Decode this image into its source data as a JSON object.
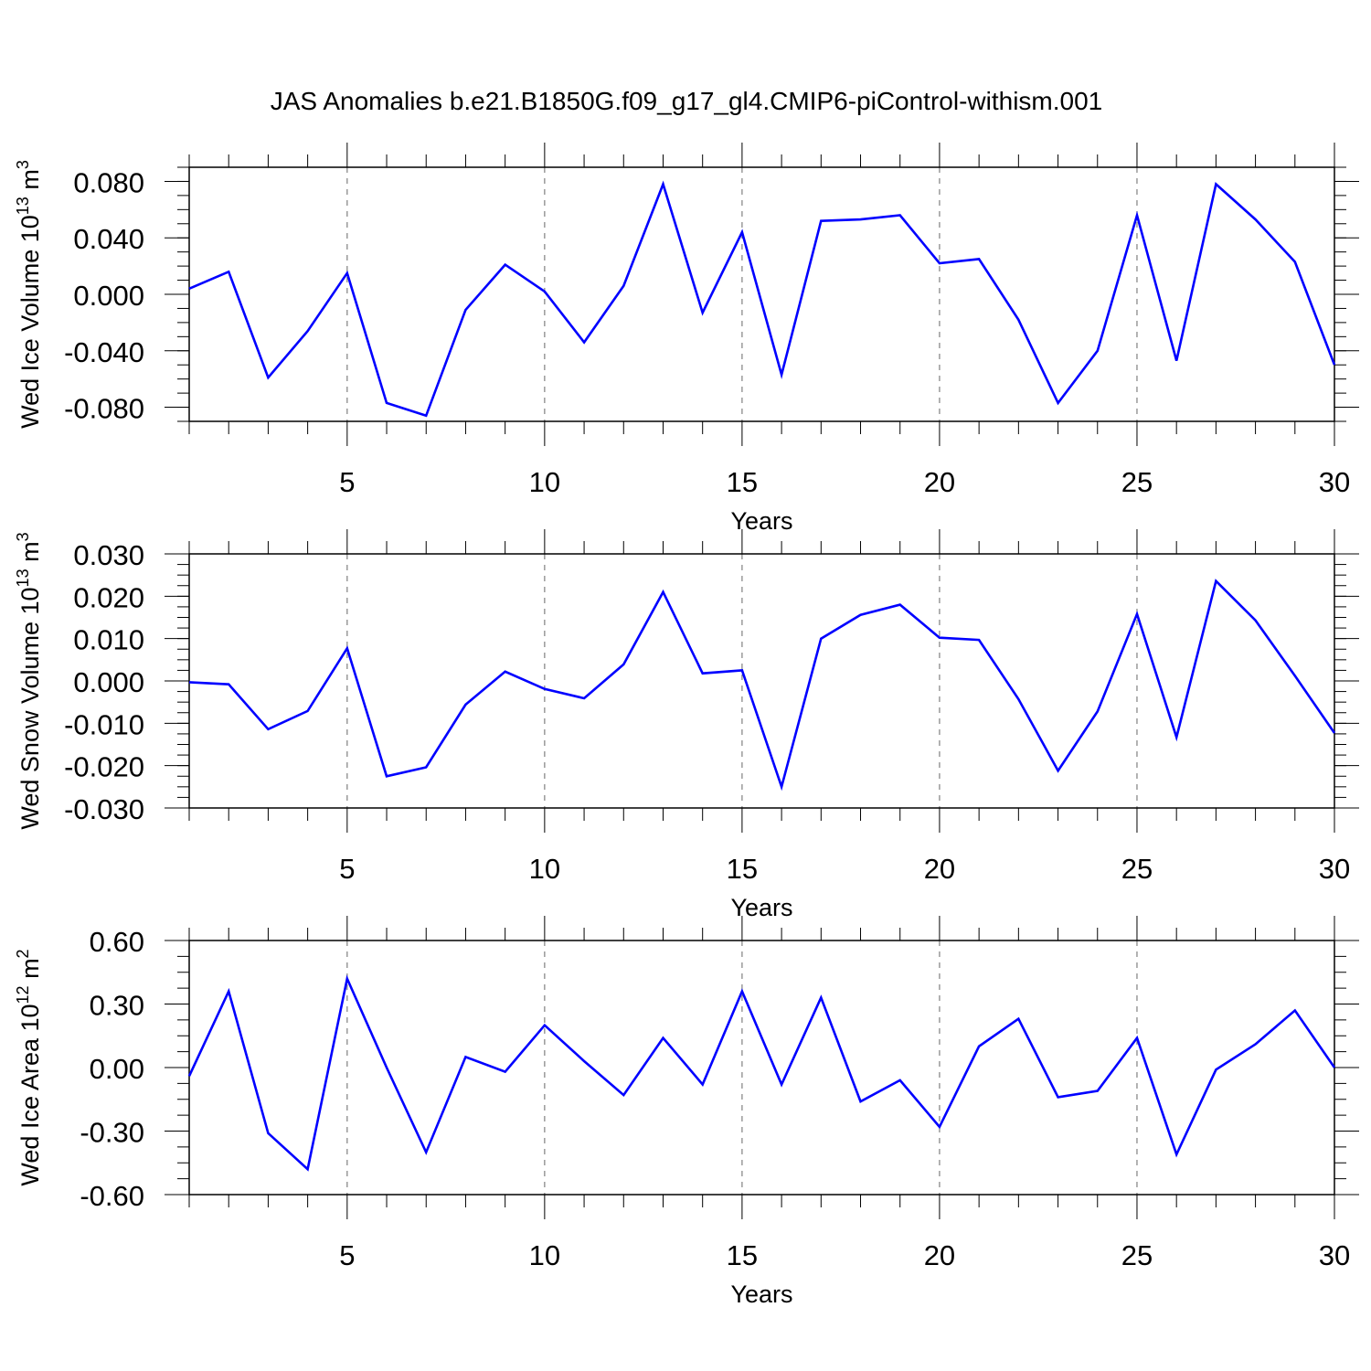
{
  "title": "JAS Anomalies b.e21.B1850G.f09_g17_gl4.CMIP6-piControl-withism.001",
  "colors": {
    "line": "#0000ff",
    "axis": "#000000",
    "grid": "#808080"
  },
  "chart_data": [
    {
      "type": "line",
      "ylabel": {
        "text": "Wed Ice Volume 10",
        "exp": "13",
        "unit": " m",
        "unit_exp": "3"
      },
      "xlabel": "Years",
      "xlim": [
        1,
        30
      ],
      "ylim": [
        -0.09,
        0.09
      ],
      "xticks": [
        5,
        10,
        15,
        20,
        25,
        30
      ],
      "yticks": [
        -0.08,
        -0.04,
        0.0,
        0.04,
        0.08
      ],
      "ytick_labels": [
        "-0.080",
        "-0.040",
        "0.000",
        "0.040",
        "0.080"
      ],
      "grid_x": [
        5,
        10,
        15,
        20,
        25
      ],
      "series": [
        {
          "name": "Wed Ice Volume",
          "x": [
            1,
            2,
            3,
            4,
            5,
            6,
            7,
            8,
            9,
            10,
            11,
            12,
            13,
            14,
            15,
            16,
            17,
            18,
            19,
            20,
            21,
            22,
            23,
            24,
            25,
            26,
            27,
            28,
            29,
            30
          ],
          "values": [
            0.004,
            0.016,
            -0.059,
            -0.026,
            0.015,
            -0.077,
            -0.086,
            -0.011,
            0.021,
            0.002,
            -0.034,
            0.006,
            0.078,
            -0.013,
            0.044,
            -0.057,
            0.052,
            0.053,
            0.056,
            0.022,
            0.025,
            -0.018,
            -0.077,
            -0.04,
            0.056,
            -0.047,
            0.078,
            0.053,
            0.023,
            -0.05
          ]
        }
      ]
    },
    {
      "type": "line",
      "ylabel": {
        "text": "Wed Snow Volume 10",
        "exp": "13",
        "unit": " m",
        "unit_exp": "3"
      },
      "xlabel": "Years",
      "xlim": [
        1,
        30
      ],
      "ylim": [
        -0.03,
        0.03
      ],
      "xticks": [
        5,
        10,
        15,
        20,
        25,
        30
      ],
      "yticks": [
        -0.03,
        -0.02,
        -0.01,
        0.0,
        0.01,
        0.02,
        0.03
      ],
      "ytick_labels": [
        "-0.030",
        "-0.020",
        "-0.010",
        "0.000",
        "0.010",
        "0.020",
        "0.030"
      ],
      "grid_x": [
        5,
        10,
        15,
        20,
        25
      ],
      "series": [
        {
          "name": "Wed Snow Volume",
          "x": [
            1,
            2,
            3,
            4,
            5,
            6,
            7,
            8,
            9,
            10,
            11,
            12,
            13,
            14,
            15,
            16,
            17,
            18,
            19,
            20,
            21,
            22,
            23,
            24,
            25,
            26,
            27,
            28,
            29,
            30
          ],
          "values": [
            -0.0003,
            -0.0008,
            -0.0114,
            -0.0071,
            0.0077,
            -0.0225,
            -0.0204,
            -0.0056,
            0.0022,
            -0.0019,
            -0.0041,
            0.0039,
            0.021,
            0.0018,
            0.0025,
            -0.025,
            0.01,
            0.0156,
            0.018,
            0.0102,
            0.0097,
            -0.0043,
            -0.0212,
            -0.0072,
            0.0158,
            -0.0133,
            0.0236,
            0.0143,
            0.0012,
            -0.0123
          ]
        }
      ]
    },
    {
      "type": "line",
      "ylabel": {
        "text": "Wed Ice Area 10",
        "exp": "12",
        "unit": " m",
        "unit_exp": "2"
      },
      "xlabel": "Years",
      "xlim": [
        1,
        30
      ],
      "ylim": [
        -0.6,
        0.6
      ],
      "xticks": [
        5,
        10,
        15,
        20,
        25,
        30
      ],
      "yticks": [
        -0.6,
        -0.3,
        0.0,
        0.3,
        0.6
      ],
      "ytick_labels": [
        "-0.60",
        "-0.30",
        "0.00",
        "0.30",
        "0.60"
      ],
      "grid_x": [
        5,
        10,
        15,
        20,
        25
      ],
      "series": [
        {
          "name": "Wed Ice Area",
          "x": [
            1,
            2,
            3,
            4,
            5,
            6,
            7,
            8,
            9,
            10,
            11,
            12,
            13,
            14,
            15,
            16,
            17,
            18,
            19,
            20,
            21,
            22,
            23,
            24,
            25,
            26,
            27,
            28,
            29,
            30
          ],
          "values": [
            -0.04,
            0.36,
            -0.31,
            -0.48,
            0.42,
            0.0,
            -0.4,
            0.05,
            -0.02,
            0.2,
            0.03,
            -0.13,
            0.14,
            -0.08,
            0.36,
            -0.08,
            0.33,
            -0.16,
            -0.06,
            -0.28,
            0.1,
            0.23,
            -0.14,
            -0.11,
            0.14,
            -0.41,
            -0.01,
            0.11,
            0.27,
            0.0
          ]
        }
      ]
    }
  ]
}
